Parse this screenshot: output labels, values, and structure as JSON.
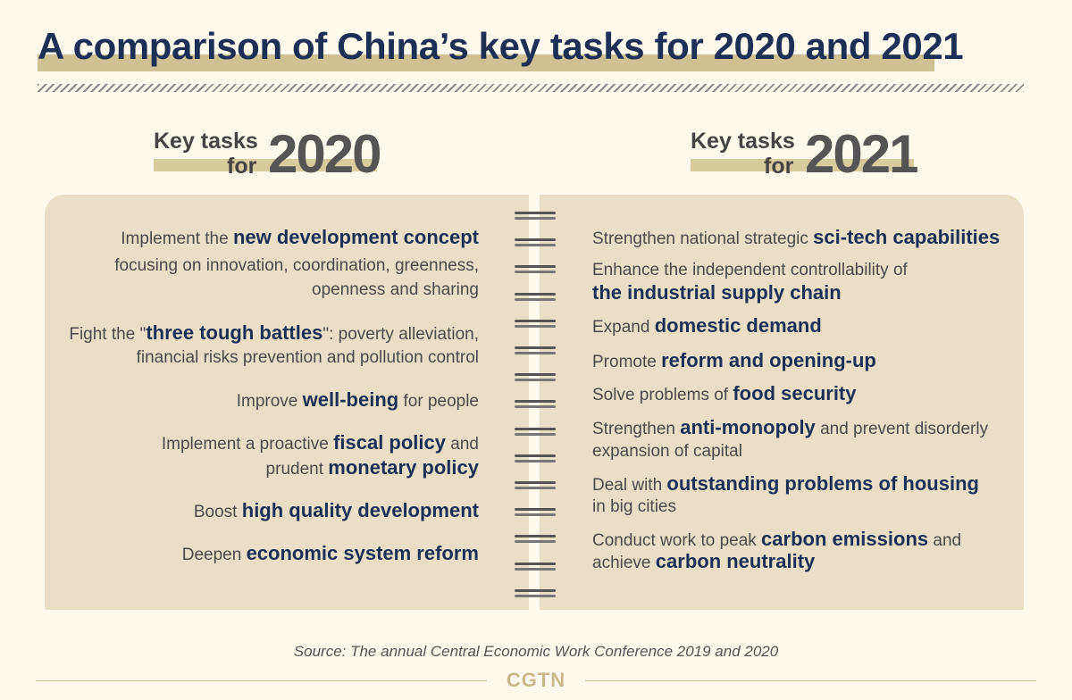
{
  "title": "A comparison of China’s key tasks for 2020 and 2021",
  "left_header": {
    "key_tasks": "Key tasks",
    "for": "for",
    "year": "2020"
  },
  "right_header": {
    "key_tasks": "Key tasks",
    "for": "for",
    "year": "2021"
  },
  "tasks_2020": [
    {
      "lines": [
        [
          "Implement the ",
          "new development concept",
          ""
        ],
        [
          "focusing on innovation, coordination, greenness,",
          "",
          ""
        ],
        [
          "openness and sharing",
          "",
          ""
        ]
      ]
    },
    {
      "lines": [
        [
          "Fight the \"",
          "three tough battles",
          "\": poverty alleviation,"
        ],
        [
          "financial risks prevention and pollution control",
          "",
          ""
        ]
      ]
    },
    {
      "lines": [
        [
          "Improve ",
          "well-being",
          " for people"
        ]
      ]
    },
    {
      "lines": [
        [
          "Implement a proactive ",
          "fiscal policy",
          " and"
        ],
        [
          "prudent ",
          "monetary policy",
          ""
        ]
      ]
    },
    {
      "lines": [
        [
          "Boost ",
          "high quality development",
          ""
        ]
      ]
    },
    {
      "lines": [
        [
          "Deepen ",
          "economic system reform",
          ""
        ]
      ]
    }
  ],
  "tasks_2021": [
    {
      "lines": [
        [
          "Strengthen national strategic ",
          "sci-tech capabilities",
          ""
        ]
      ]
    },
    {
      "lines": [
        [
          "Enhance the independent controllability of",
          "",
          ""
        ],
        [
          "",
          "the industrial supply chain",
          ""
        ]
      ]
    },
    {
      "lines": [
        [
          "Expand ",
          "domestic demand",
          ""
        ]
      ]
    },
    {
      "lines": [
        [
          "Promote ",
          "reform and opening-up",
          ""
        ]
      ]
    },
    {
      "lines": [
        [
          "Solve problems of ",
          "food security",
          ""
        ]
      ]
    },
    {
      "lines": [
        [
          "Strengthen ",
          "anti-monopoly",
          " and prevent disorderly"
        ],
        [
          "expansion of capital",
          "",
          ""
        ]
      ]
    },
    {
      "lines": [
        [
          "Deal with ",
          "outstanding problems of housing",
          ""
        ],
        [
          "in big cities",
          "",
          ""
        ]
      ]
    },
    {
      "lines": [
        [
          "Conduct work to peak ",
          "carbon emissions",
          " and"
        ],
        [
          "achieve ",
          "carbon neutrality",
          ""
        ]
      ]
    }
  ],
  "source": "Source: The annual Central Economic Work Conference 2019 and 2020",
  "brand": "CGTN"
}
